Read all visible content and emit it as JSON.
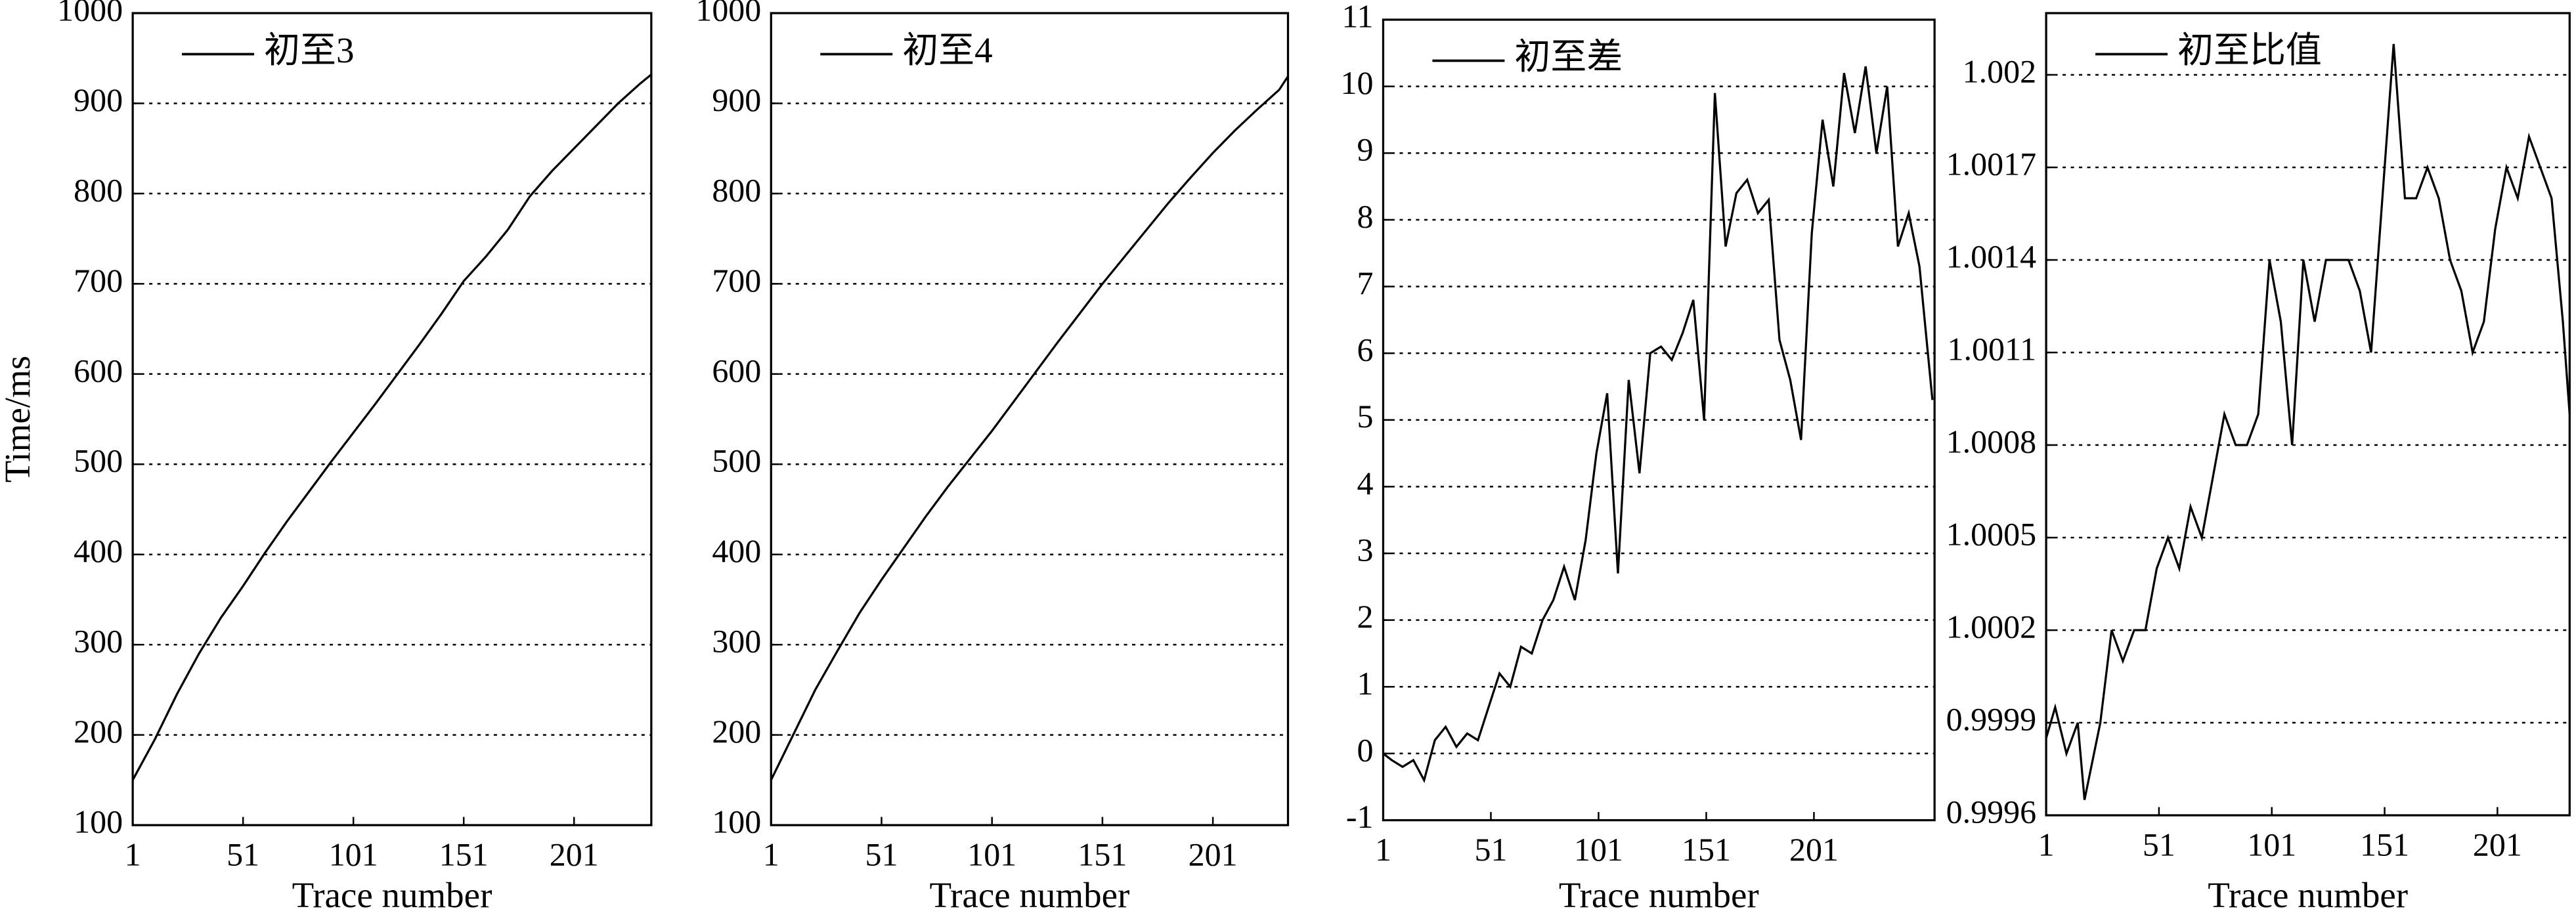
{
  "chart_data": [
    {
      "type": "line",
      "xlabel": "Trace number",
      "ylabel": "Time/ms",
      "legend": "upper left",
      "grid": "y",
      "x": [
        1,
        11,
        21,
        31,
        41,
        51,
        61,
        71,
        81,
        91,
        101,
        111,
        121,
        131,
        141,
        151,
        161,
        171,
        181,
        191,
        201,
        211,
        221,
        231,
        236
      ],
      "series": [
        {
          "name": "初至3",
          "color": "#000000",
          "values": [
            150,
            195,
            245,
            290,
            330,
            365,
            402,
            437,
            470,
            503,
            535,
            567,
            600,
            633,
            667,
            703,
            730,
            760,
            797,
            825,
            850,
            875,
            900,
            922,
            932
          ]
        }
      ],
      "xlim": [
        1,
        236
      ],
      "ylim": [
        100,
        1000
      ],
      "xticks": [
        1,
        51,
        101,
        151,
        201
      ],
      "yticks": [
        100,
        200,
        300,
        400,
        500,
        600,
        700,
        800,
        900,
        1000
      ]
    },
    {
      "type": "line",
      "xlabel": "Trace number",
      "legend": "upper left",
      "grid": "y",
      "x": [
        1,
        11,
        21,
        31,
        41,
        51,
        61,
        71,
        81,
        91,
        101,
        111,
        121,
        131,
        141,
        151,
        161,
        171,
        181,
        191,
        201,
        211,
        221,
        231,
        235
      ],
      "series": [
        {
          "name": "初至4",
          "color": "#000000",
          "values": [
            150,
            200,
            250,
            293,
            335,
            372,
            407,
            442,
            475,
            506,
            537,
            570,
            603,
            636,
            668,
            700,
            730,
            760,
            790,
            818,
            845,
            870,
            893,
            915,
            930
          ]
        }
      ],
      "xlim": [
        1,
        235
      ],
      "ylim": [
        100,
        1000
      ],
      "xticks": [
        1,
        51,
        101,
        151,
        201
      ],
      "yticks": [
        100,
        200,
        300,
        400,
        500,
        600,
        700,
        800,
        900,
        1000
      ]
    },
    {
      "type": "line",
      "xlabel": "Trace number",
      "legend": "upper left",
      "grid": "y",
      "x": [
        1,
        5,
        10,
        15,
        20,
        25,
        30,
        35,
        40,
        45,
        50,
        55,
        60,
        65,
        70,
        75,
        80,
        85,
        90,
        95,
        100,
        105,
        110,
        115,
        120,
        125,
        130,
        135,
        140,
        145,
        150,
        155,
        160,
        165,
        170,
        175,
        180,
        185,
        190,
        195,
        200,
        205,
        210,
        215,
        220,
        225,
        230,
        235,
        240,
        245,
        250,
        256
      ],
      "series": [
        {
          "name": "初至差",
          "color": "#000000",
          "values": [
            0,
            -0.1,
            -0.2,
            -0.1,
            -0.4,
            0.2,
            0.4,
            0.1,
            0.3,
            0.2,
            0.7,
            1.2,
            1.0,
            1.6,
            1.5,
            2.0,
            2.3,
            2.8,
            2.3,
            3.2,
            4.5,
            5.4,
            2.7,
            5.6,
            4.2,
            6.0,
            6.1,
            5.9,
            6.3,
            6.8,
            5.0,
            9.9,
            7.6,
            8.4,
            8.6,
            8.1,
            8.3,
            6.2,
            5.6,
            4.7,
            7.8,
            9.5,
            8.5,
            10.2,
            9.3,
            10.3,
            9.0,
            10.0,
            7.6,
            8.1,
            7.3,
            5.3
          ]
        }
      ],
      "xlim": [
        1,
        257
      ],
      "ylim": [
        -1,
        11
      ],
      "xticks": [
        1,
        51,
        101,
        151,
        201
      ],
      "yticks": [
        -1,
        0,
        1,
        2,
        3,
        4,
        5,
        6,
        7,
        8,
        9,
        10,
        11
      ]
    },
    {
      "type": "line",
      "xlabel": "Trace number",
      "legend": "upper left",
      "grid": "y",
      "x": [
        1,
        5,
        10,
        15,
        18,
        25,
        30,
        35,
        40,
        45,
        50,
        55,
        60,
        65,
        70,
        75,
        80,
        85,
        90,
        95,
        100,
        105,
        110,
        115,
        120,
        125,
        130,
        135,
        140,
        145,
        150,
        155,
        160,
        165,
        170,
        175,
        180,
        185,
        190,
        195,
        200,
        205,
        210,
        215,
        220,
        225,
        230,
        233
      ],
      "series": [
        {
          "name": "初至比值",
          "color": "#000000",
          "values": [
            0.99985,
            0.99995,
            0.9998,
            0.9999,
            0.99965,
            0.9999,
            1.0002,
            1.0001,
            1.0002,
            1.0002,
            1.0004,
            1.0005,
            1.0004,
            1.0006,
            1.0005,
            1.0007,
            1.0009,
            1.0008,
            1.0008,
            1.0009,
            1.0014,
            1.0012,
            1.0008,
            1.0014,
            1.0012,
            1.0014,
            1.0014,
            1.0014,
            1.0013,
            1.0011,
            1.0016,
            1.0021,
            1.0016,
            1.0016,
            1.0017,
            1.0016,
            1.0014,
            1.0013,
            1.0011,
            1.0012,
            1.0015,
            1.0017,
            1.0016,
            1.0018,
            1.0017,
            1.0016,
            1.0012,
            1.0009
          ]
        }
      ],
      "xlim": [
        1,
        233
      ],
      "ylim": [
        0.9996,
        1.0022
      ],
      "xticks": [
        1,
        51,
        101,
        151,
        201
      ],
      "yticks": [
        0.9996,
        0.9999,
        1.0002,
        1.0005,
        1.0008,
        1.0011,
        1.0014,
        1.0017,
        1.002
      ]
    }
  ]
}
